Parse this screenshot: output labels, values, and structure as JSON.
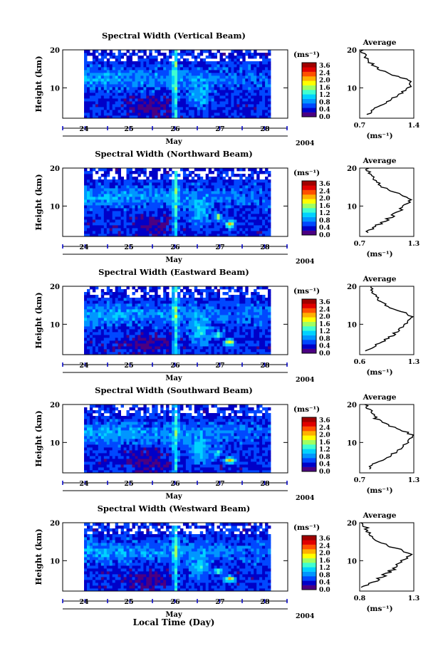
{
  "figure": {
    "y_label": "Height (km)",
    "x_title": "Local Time (Day)",
    "month_label": "May",
    "year_label": "2004",
    "colorbar_unit": "(ms⁻¹)",
    "colorbar_ticks": [
      "3.6",
      "2.4",
      "2.0",
      "1.6",
      "1.2",
      "0.8",
      "0.4",
      "0.0"
    ],
    "avg_title": "Average",
    "avg_xunit": "(ms⁻¹)",
    "colors": [
      "#4b0082",
      "#0000c8",
      "#0048ff",
      "#0096ff",
      "#00d2ff",
      "#40ffd0",
      "#a0ff60",
      "#ffff00",
      "#ffb000",
      "#ff5000",
      "#e00000",
      "#a00000"
    ]
  },
  "chart_data": [
    {
      "type": "heatmap",
      "title": "Spectral Width (Vertical Beam)",
      "x_ticks": [
        "24",
        "25",
        "26",
        "27",
        "28"
      ],
      "y_ticks": [
        "20",
        "10"
      ],
      "ylim": [
        2,
        20
      ],
      "avg_profile": {
        "type": "line",
        "xlim": [
          0.7,
          1.4
        ],
        "x_ticks": [
          "0.7",
          "1.4"
        ],
        "y_ticks": [
          "20",
          "10"
        ],
        "heights": [
          3,
          4,
          5,
          6,
          7,
          8,
          9,
          10,
          11,
          12,
          13,
          14,
          15,
          16,
          17,
          18,
          19,
          20
        ],
        "values": [
          0.8,
          0.85,
          0.95,
          1.02,
          1.1,
          1.18,
          1.26,
          1.33,
          1.37,
          1.33,
          1.2,
          1.05,
          0.95,
          0.88,
          0.82,
          0.78,
          0.75,
          0.73
        ]
      }
    },
    {
      "type": "heatmap",
      "title": "Spectral Width (Northward Beam)",
      "x_ticks": [
        "24",
        "25",
        "26",
        "27",
        "28"
      ],
      "y_ticks": [
        "20",
        "10"
      ],
      "ylim": [
        2,
        20
      ],
      "avg_profile": {
        "type": "line",
        "xlim": [
          0.7,
          1.3
        ],
        "x_ticks": [
          "0.7",
          "1.3"
        ],
        "y_ticks": [
          "20",
          "10"
        ],
        "heights": [
          3,
          4,
          5,
          6,
          7,
          8,
          9,
          10,
          11,
          12,
          13,
          14,
          15,
          16,
          17,
          18,
          19,
          20
        ],
        "values": [
          0.78,
          0.84,
          0.9,
          0.98,
          1.04,
          1.1,
          1.15,
          1.2,
          1.24,
          1.26,
          1.18,
          1.05,
          0.96,
          0.9,
          0.86,
          0.82,
          0.8,
          0.78
        ]
      }
    },
    {
      "type": "heatmap",
      "title": "Spectral Width (Eastward Beam)",
      "x_ticks": [
        "24",
        "25",
        "26",
        "27",
        "28"
      ],
      "y_ticks": [
        "20",
        "10"
      ],
      "ylim": [
        2,
        20
      ],
      "avg_profile": {
        "type": "line",
        "xlim": [
          0.6,
          1.3
        ],
        "x_ticks": [
          "0.6",
          "1.3"
        ],
        "y_ticks": [
          "20",
          "10"
        ],
        "heights": [
          3,
          4,
          5,
          6,
          7,
          8,
          9,
          10,
          11,
          12,
          13,
          14,
          15,
          16,
          17,
          18,
          19,
          20
        ],
        "values": [
          0.7,
          0.78,
          0.86,
          0.94,
          1.02,
          1.08,
          1.14,
          1.2,
          1.25,
          1.27,
          1.18,
          1.05,
          0.95,
          0.88,
          0.82,
          0.78,
          0.76,
          0.74
        ]
      }
    },
    {
      "type": "heatmap",
      "title": "Spectral Width (Southward Beam)",
      "x_ticks": [
        "24",
        "25",
        "26",
        "27",
        "28"
      ],
      "y_ticks": [
        "20",
        "10"
      ],
      "ylim": [
        2,
        20
      ],
      "avg_profile": {
        "type": "line",
        "xlim": [
          0.7,
          1.3
        ],
        "x_ticks": [
          "0.7",
          "1.3"
        ],
        "y_ticks": [
          "20",
          "10"
        ],
        "heights": [
          3,
          4,
          5,
          6,
          7,
          8,
          9,
          10,
          11,
          12,
          13,
          14,
          15,
          16,
          17,
          18,
          19,
          20
        ],
        "values": [
          0.78,
          0.84,
          0.92,
          1.0,
          1.06,
          1.12,
          1.17,
          1.22,
          1.26,
          1.27,
          1.2,
          1.08,
          0.98,
          0.9,
          0.86,
          0.82,
          0.8,
          0.78
        ]
      }
    },
    {
      "type": "heatmap",
      "title": "Spectral Width (Westward Beam)",
      "x_ticks": [
        "24",
        "25",
        "26",
        "27",
        "28"
      ],
      "y_ticks": [
        "20",
        "10"
      ],
      "ylim": [
        2,
        20
      ],
      "avg_profile": {
        "type": "line",
        "xlim": [
          0.8,
          1.3
        ],
        "x_ticks": [
          "0.8",
          "1.3"
        ],
        "y_ticks": [
          "20",
          "10"
        ],
        "heights": [
          3,
          4,
          5,
          6,
          7,
          8,
          9,
          10,
          11,
          12,
          13,
          14,
          15,
          16,
          17,
          18,
          19,
          20
        ],
        "values": [
          0.84,
          0.9,
          0.96,
          1.02,
          1.07,
          1.12,
          1.16,
          1.2,
          1.24,
          1.26,
          1.18,
          1.06,
          0.98,
          0.92,
          0.88,
          0.86,
          0.85,
          0.84
        ]
      }
    }
  ]
}
